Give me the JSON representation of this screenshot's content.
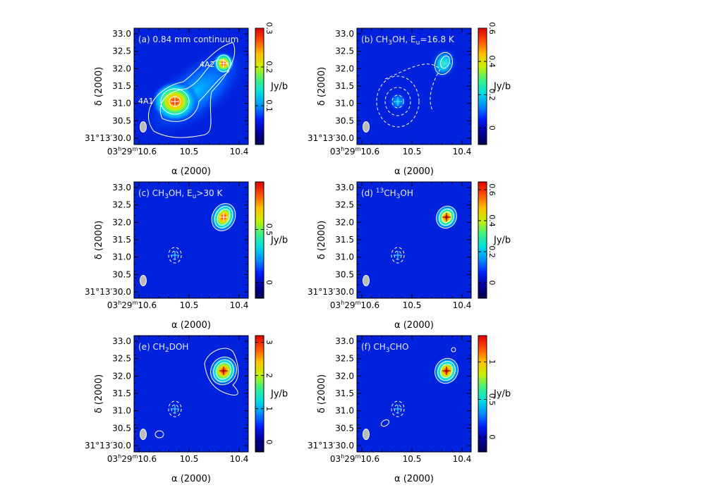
{
  "colormap": [
    "#000050",
    "#0000a0",
    "#0020ff",
    "#0090ff",
    "#00e0e0",
    "#40f080",
    "#c8f000",
    "#ffc000",
    "#ff5000",
    "#e00000"
  ],
  "xlabel": "α (2000)",
  "ylabel": "δ (2000)",
  "cbar_unit": "Jy/b",
  "xticks": [
    {
      "v": 0.0,
      "label": "03h29m10.s6",
      "pre": "03",
      "h": "h",
      "mid": "29",
      "m": "m",
      "sec": "10.6"
    },
    {
      "v": 0.5,
      "label": "10.s5",
      "sec": "10.5"
    },
    {
      "v": 1.0,
      "label": "10.s4",
      "sec": "10.4"
    }
  ],
  "yticks": [
    {
      "v": 33.0,
      "label": "33.0"
    },
    {
      "v": 32.5,
      "label": "32.5"
    },
    {
      "v": 32.0,
      "label": "32.0"
    },
    {
      "v": 31.5,
      "label": "31.5"
    },
    {
      "v": 31.0,
      "label": "31.0"
    },
    {
      "v": 30.5,
      "label": "30.5"
    },
    {
      "v": 30.0,
      "label": "31°13′30.0",
      "deg": "31",
      "min": "13",
      "sec": "30.0"
    }
  ],
  "panels": [
    {
      "id": "a",
      "title": "(a) 0.84 mm continuum",
      "cbar_ticks": [
        "0.1",
        "0.2",
        "0.3"
      ],
      "cbar_range": [
        0,
        0.3
      ],
      "labels": [
        {
          "text": "4A2"
        },
        {
          "text": "4A1"
        }
      ]
    },
    {
      "id": "b",
      "title": "(b) CH3OH, Eu=16.8 K",
      "cbar_ticks": [
        "0",
        "0.2",
        "0.4",
        "0.6"
      ],
      "cbar_range": [
        -0.1,
        0.6
      ]
    },
    {
      "id": "c",
      "title": "(c) CH3OH, Eu>30 K",
      "cbar_ticks": [
        "0",
        "0.5"
      ],
      "cbar_range": [
        -0.15,
        0.95
      ]
    },
    {
      "id": "d",
      "title": "(d) 13CH3OH",
      "cbar_ticks": [
        "0",
        "0.2",
        "0.4",
        "0.6"
      ],
      "cbar_range": [
        -0.1,
        0.65
      ]
    },
    {
      "id": "e",
      "title": "(e) CH2DOH",
      "cbar_ticks": [
        "0",
        "1",
        "2",
        "3"
      ],
      "cbar_range": [
        -0.3,
        3.2
      ]
    },
    {
      "id": "f",
      "title": "(f) CH3CHO",
      "cbar_ticks": [
        "0",
        "0.5",
        "1"
      ],
      "cbar_range": [
        -0.2,
        1.35
      ]
    }
  ]
}
